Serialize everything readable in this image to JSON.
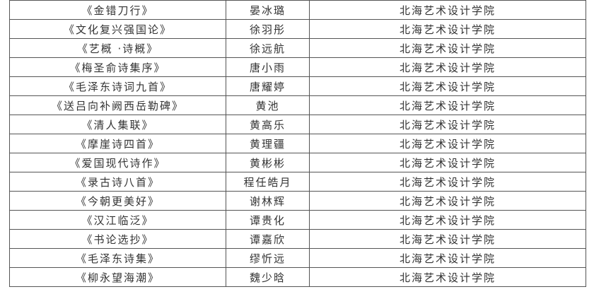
{
  "rows": [
    {
      "work": "《金错刀行》",
      "name": "晏冰璐",
      "school": "北海艺术设计学院"
    },
    {
      "work": "《文化复兴强国论》",
      "name": "徐羽彤",
      "school": "北海艺术设计学院"
    },
    {
      "work": "《艺概 ·诗概》",
      "name": "徐远航",
      "school": "北海艺术设计学院"
    },
    {
      "work": "《梅圣俞诗集序》",
      "name": "唐小雨",
      "school": "北海艺术设计学院"
    },
    {
      "work": "《毛泽东诗词九首》",
      "name": "唐耀婷",
      "school": "北海艺术设计学院"
    },
    {
      "work": "《送吕向补阙西岳勒碑》",
      "name": "黄池",
      "school": "北海艺术设计学院"
    },
    {
      "work": "《清人集联》",
      "name": "黄高乐",
      "school": "北海艺术设计学院"
    },
    {
      "work": "《摩崖诗四首》",
      "name": "黄理疆",
      "school": "北海艺术设计学院"
    },
    {
      "work": "《爱国现代诗作》",
      "name": "黄彬彬",
      "school": "北海艺术设计学院"
    },
    {
      "work": "《录古诗八首》",
      "name": "程任皓月",
      "school": "北海艺术设计学院"
    },
    {
      "work": "《今朝更美好》",
      "name": "谢林辉",
      "school": "北海艺术设计学院"
    },
    {
      "work": "《汉江临泛》",
      "name": "谭贵化",
      "school": "北海艺术设计学院"
    },
    {
      "work": "《书论选抄》",
      "name": "谭嘉欣",
      "school": "北海艺术设计学院"
    },
    {
      "work": "《毛泽东诗集》",
      "name": "缪忻远",
      "school": "北海艺术设计学院"
    },
    {
      "work": "《柳永望海潮》",
      "name": "魏少晗",
      "school": "北海艺术设计学院"
    }
  ]
}
